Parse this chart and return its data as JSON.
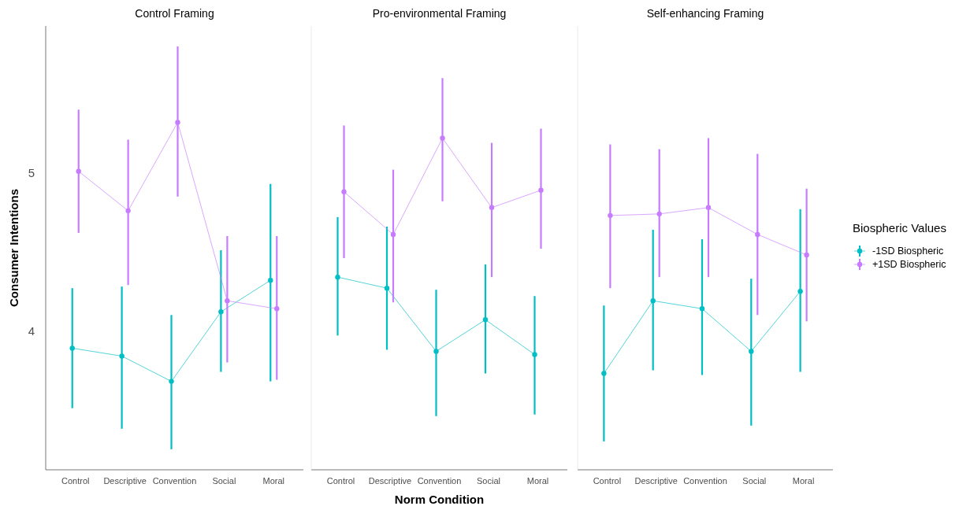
{
  "chart_data": [
    {
      "type": "line",
      "title": "Control Framing",
      "ylabel": "Consumer Intentions",
      "categories": [
        "Control",
        "Descriptive",
        "Convention",
        "Social",
        "Moral"
      ],
      "ylim": [
        3.12,
        5.93
      ],
      "yticks": [
        4,
        5
      ],
      "grid": false,
      "legend": false,
      "marker": "circle",
      "series": [
        {
          "color": "#00bfc4",
          "values": [
            3.89,
            3.84,
            3.68,
            4.12,
            4.32
          ],
          "errors": [
            [
              3.51,
              4.27
            ],
            [
              3.38,
              4.28
            ],
            [
              3.25,
              4.1
            ],
            [
              3.74,
              4.51
            ],
            [
              3.68,
              4.93
            ]
          ]
        },
        {
          "color": "#c77cff",
          "values": [
            5.01,
            4.76,
            5.32,
            4.19,
            4.14
          ],
          "errors": [
            [
              4.62,
              5.4
            ],
            [
              4.29,
              5.21
            ],
            [
              4.85,
              5.8
            ],
            [
              3.8,
              4.6
            ],
            [
              3.69,
              4.6
            ]
          ]
        }
      ]
    },
    {
      "type": "line",
      "title": "Pro-environmental Framing",
      "xlabel": "Norm Condition",
      "categories": [
        "Control",
        "Descriptive",
        "Convention",
        "Social",
        "Moral"
      ],
      "ylim": [
        3.12,
        5.93
      ],
      "tick_labels": "x",
      "grid": false,
      "legend": false,
      "marker": "circle",
      "series": [
        {
          "color": "#00bfc4",
          "values": [
            4.34,
            4.27,
            3.87,
            4.07,
            3.85
          ],
          "errors": [
            [
              3.97,
              4.72
            ],
            [
              3.88,
              4.66
            ],
            [
              3.46,
              4.26
            ],
            [
              3.73,
              4.42
            ],
            [
              3.47,
              4.22
            ]
          ]
        },
        {
          "color": "#c77cff",
          "values": [
            4.88,
            4.61,
            5.22,
            4.78,
            4.89
          ],
          "errors": [
            [
              4.46,
              5.3
            ],
            [
              4.18,
              5.02
            ],
            [
              4.82,
              5.6
            ],
            [
              4.34,
              5.19
            ],
            [
              4.52,
              5.28
            ]
          ]
        }
      ]
    },
    {
      "type": "line",
      "title": "Self-enhancing Framing",
      "legend_title": "Biospheric Values",
      "categories": [
        "Control",
        "Descriptive",
        "Convention",
        "Social",
        "Moral"
      ],
      "ylim": [
        3.12,
        5.93
      ],
      "tick_labels": "x",
      "grid": false,
      "legend": "right",
      "marker": "circle",
      "series": [
        {
          "name": "-1SD Biospheric",
          "color": "#00bfc4",
          "values": [
            3.73,
            4.19,
            4.14,
            3.87,
            4.25
          ],
          "errors": [
            [
              3.3,
              4.16
            ],
            [
              3.75,
              4.64
            ],
            [
              3.72,
              4.58
            ],
            [
              3.4,
              4.33
            ],
            [
              3.74,
              4.77
            ]
          ]
        },
        {
          "name": "+1SD Biospheric",
          "color": "#c77cff",
          "values": [
            4.73,
            4.74,
            4.78,
            4.61,
            4.48
          ],
          "errors": [
            [
              4.27,
              5.18
            ],
            [
              4.34,
              5.15
            ],
            [
              4.34,
              5.22
            ],
            [
              4.1,
              5.12
            ],
            [
              4.06,
              4.9
            ]
          ]
        }
      ]
    }
  ]
}
